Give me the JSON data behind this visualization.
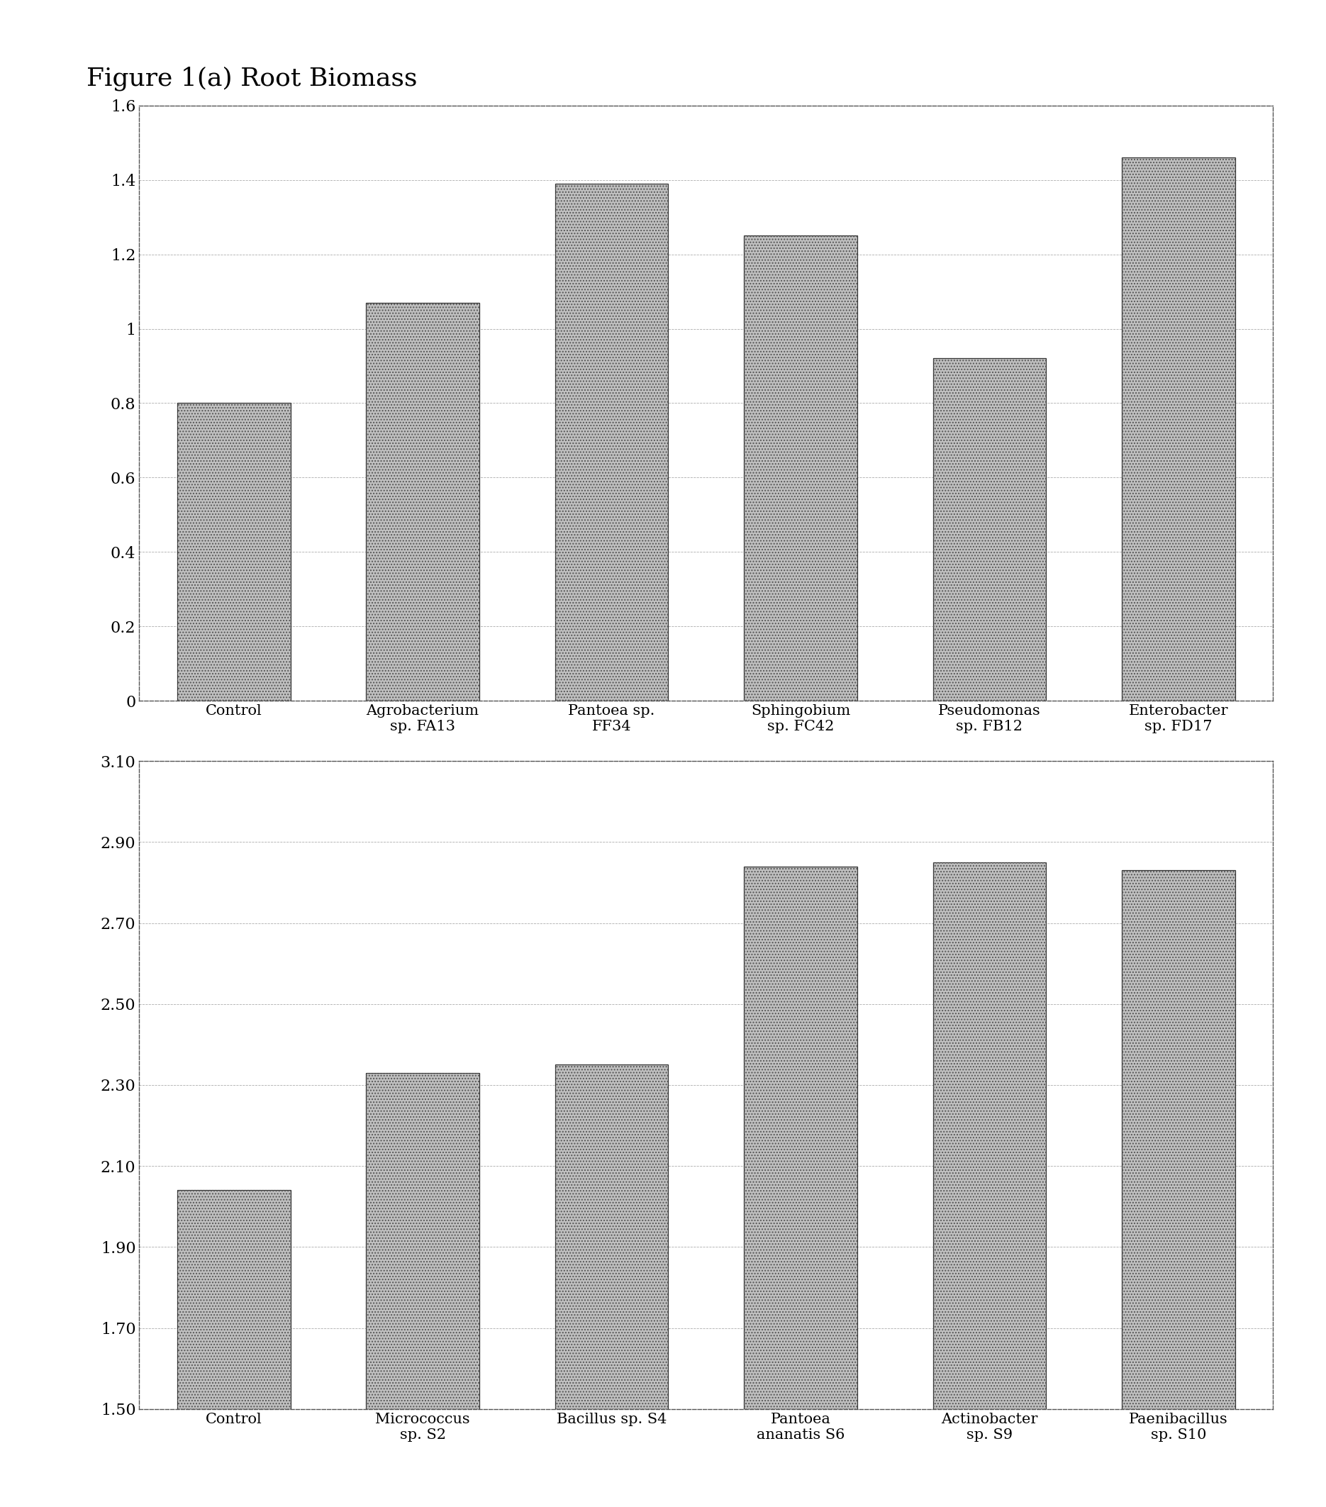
{
  "chart1": {
    "title": "Figure 1(a) Root Biomass",
    "categories": [
      "Control",
      "Agrobacterium\nsp. FA13",
      "Pantoea sp.\nFF34",
      "Sphingobium\nsp. FC42",
      "Pseudomonas\nsp. FB12",
      "Enterobacter\nsp. FD17"
    ],
    "values": [
      0.8,
      1.07,
      1.39,
      1.25,
      0.92,
      1.46
    ],
    "ylim": [
      0,
      1.6
    ],
    "yticks": [
      0,
      0.2,
      0.4,
      0.6,
      0.8,
      1.0,
      1.2,
      1.4,
      1.6
    ],
    "yticklabels": [
      "0",
      "0.2",
      "0.4",
      "0.6",
      "0.8",
      "1",
      "1.2",
      "1.4",
      "1.6"
    ]
  },
  "chart2": {
    "categories": [
      "Control",
      "Micrococcus\nsp. S2",
      "Bacillus sp. S4",
      "Pantoea\nananatis S6",
      "Actinobacter\nsp. S9",
      "Paenibacillus\nsp. S10"
    ],
    "values": [
      2.04,
      2.33,
      2.35,
      2.84,
      2.85,
      2.83
    ],
    "ylim": [
      1.5,
      3.1
    ],
    "yticks": [
      1.5,
      1.7,
      1.9,
      2.1,
      2.3,
      2.5,
      2.7,
      2.9,
      3.1
    ],
    "yticklabels": [
      "1.50",
      "1.70",
      "1.90",
      "2.10",
      "2.30",
      "2.50",
      "2.70",
      "2.90",
      "3.10"
    ]
  },
  "bar_color": "#b0b0b0",
  "hatch_patterns": [
    ".....",
    ".....",
    ".....",
    ".....",
    ".....",
    "....."
  ],
  "edge_color": "#333333",
  "grid_color": "#888888",
  "bg_color": "#ffffff",
  "title_fontsize": 26,
  "tick_fontsize": 16,
  "label_fontsize": 15,
  "box_linestyle": "dashed"
}
